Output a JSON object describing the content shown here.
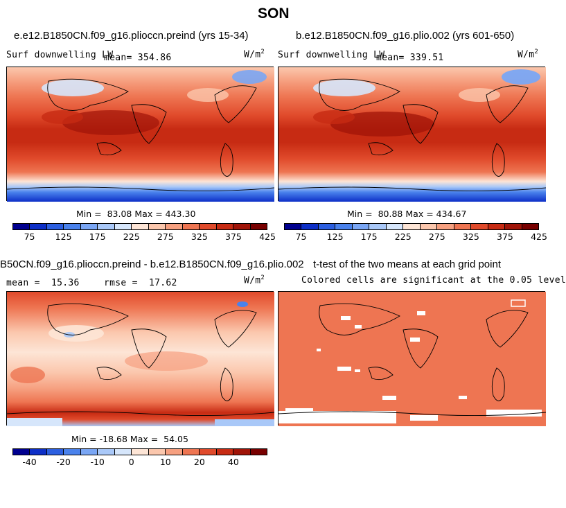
{
  "figure": {
    "title": "SON"
  },
  "panels": [
    {
      "id": "test-case",
      "case_title": "e.e12.B1850CN.f09_g16.plioccn.preind (yrs 15-34)",
      "variable": "Surf downwelling LW",
      "stat_label": "mean",
      "stat_value": "354.86",
      "units_base": "W/m",
      "units_exp": "2",
      "min_label": "Min =",
      "min_value": "83.08",
      "max_label": "Max =",
      "max_value": "443.30"
    },
    {
      "id": "control-case",
      "case_title": "b.e12.B1850CN.f09_g16.plio.002 (yrs 601-650)",
      "variable": "Surf downwelling LW",
      "stat_label": "mean",
      "stat_value": "339.51",
      "units_base": "W/m",
      "units_exp": "2",
      "min_label": "Min =",
      "min_value": "80.88",
      "max_label": "Max =",
      "max_value": "434.67"
    },
    {
      "id": "difference",
      "case_title": "B50CN.f09_g16.plioccn.preind - b.e12.B1850CN.f09_g16.plio.002",
      "mean_label": "mean =",
      "mean_value": "15.36",
      "rmse_label": "rmse =",
      "rmse_value": "17.62",
      "units_base": "W/m",
      "units_exp": "2",
      "min_label": "Min =",
      "min_value": "-18.68",
      "max_label": "Max =",
      "max_value": "54.05"
    },
    {
      "id": "ttest",
      "case_title": "t-test of the two means at each grid point",
      "note": "Colored cells are significant at the 0.05 level"
    }
  ],
  "colorbars": {
    "absolute": {
      "ticks": [
        "75",
        "125",
        "175",
        "225",
        "275",
        "325",
        "375",
        "425"
      ],
      "colors": [
        "#00008f",
        "#0d2fc7",
        "#2c5fe0",
        "#4a82ec",
        "#7aa6f4",
        "#a9c8f8",
        "#d6e6fb",
        "#fde5d6",
        "#fbc7ad",
        "#f6a080",
        "#ee7552",
        "#e04a2b",
        "#c72b13",
        "#a01408",
        "#780000"
      ]
    },
    "difference": {
      "ticks": [
        "-40",
        "-20",
        "-10",
        "0",
        "10",
        "20",
        "40"
      ],
      "colors": [
        "#00008f",
        "#0d2fc7",
        "#2c5fe0",
        "#4a82ec",
        "#7aa6f4",
        "#a9c8f8",
        "#d6e6fb",
        "#fde5d6",
        "#fbc7ad",
        "#f6a080",
        "#ee7552",
        "#e04a2b",
        "#c72b13",
        "#a01408",
        "#780000"
      ]
    }
  }
}
